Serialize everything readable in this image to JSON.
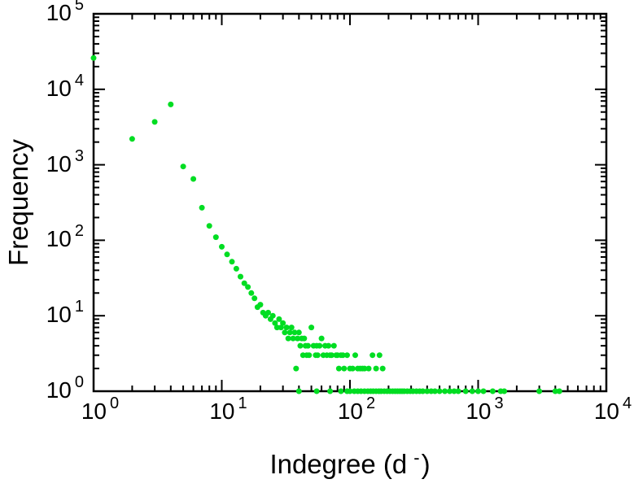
{
  "chart_data": {
    "type": "scatter",
    "title": "",
    "xlabel_prefix": "Indegree (d",
    "xlabel_sup": "-",
    "xlabel_suffix": ")",
    "ylabel": "Frequency",
    "x_scale": "log",
    "y_scale": "log",
    "xlim": [
      1,
      10000
    ],
    "ylim": [
      1,
      100000
    ],
    "tick_mantissa": "10",
    "x_tick_exponents": [
      0,
      1,
      2,
      3,
      4
    ],
    "y_tick_exponents": [
      0,
      1,
      2,
      3,
      4,
      5
    ],
    "grid": false,
    "legend": "none",
    "marker_color": "#00dd22",
    "axis_color": "#000000",
    "points": [
      [
        1,
        26000
      ],
      [
        2,
        2200
      ],
      [
        3,
        3700
      ],
      [
        4,
        6300
      ],
      [
        5,
        950
      ],
      [
        6,
        650
      ],
      [
        7,
        270
      ],
      [
        8,
        155
      ],
      [
        9,
        110
      ],
      [
        10,
        82
      ],
      [
        11,
        65
      ],
      [
        12,
        52
      ],
      [
        13,
        42
      ],
      [
        14,
        33
      ],
      [
        15,
        27
      ],
      [
        16,
        24
      ],
      [
        17,
        20
      ],
      [
        18,
        17
      ],
      [
        19,
        13
      ],
      [
        20,
        14
      ],
      [
        21,
        11
      ],
      [
        22,
        10
      ],
      [
        23,
        11
      ],
      [
        24,
        9
      ],
      [
        25,
        10
      ],
      [
        26,
        8
      ],
      [
        27,
        7
      ],
      [
        28,
        9
      ],
      [
        29,
        7
      ],
      [
        30,
        8
      ],
      [
        31,
        6
      ],
      [
        32,
        7
      ],
      [
        33,
        5
      ],
      [
        34,
        6
      ],
      [
        35,
        7
      ],
      [
        36,
        5
      ],
      [
        37,
        6
      ],
      [
        38,
        2
      ],
      [
        39,
        5
      ],
      [
        40,
        6
      ],
      [
        41,
        4
      ],
      [
        42,
        5
      ],
      [
        43,
        3
      ],
      [
        44,
        5
      ],
      [
        45,
        4
      ],
      [
        46,
        3
      ],
      [
        47,
        4
      ],
      [
        48,
        3
      ],
      [
        50,
        7
      ],
      [
        52,
        4
      ],
      [
        54,
        3
      ],
      [
        55,
        4
      ],
      [
        56,
        3
      ],
      [
        58,
        4
      ],
      [
        60,
        5
      ],
      [
        62,
        3
      ],
      [
        64,
        4
      ],
      [
        66,
        3
      ],
      [
        68,
        4
      ],
      [
        70,
        3
      ],
      [
        72,
        3
      ],
      [
        75,
        4
      ],
      [
        78,
        3
      ],
      [
        80,
        3
      ],
      [
        82,
        2
      ],
      [
        85,
        3
      ],
      [
        88,
        3
      ],
      [
        90,
        2
      ],
      [
        95,
        3
      ],
      [
        100,
        2
      ],
      [
        105,
        2
      ],
      [
        110,
        3
      ],
      [
        115,
        2
      ],
      [
        120,
        2
      ],
      [
        125,
        2
      ],
      [
        130,
        2
      ],
      [
        140,
        2
      ],
      [
        150,
        3
      ],
      [
        160,
        2
      ],
      [
        170,
        3
      ],
      [
        180,
        2
      ],
      [
        40,
        1
      ],
      [
        55,
        1
      ],
      [
        70,
        1
      ],
      [
        85,
        1
      ],
      [
        95,
        1
      ],
      [
        100,
        1
      ],
      [
        108,
        1
      ],
      [
        115,
        1
      ],
      [
        122,
        1
      ],
      [
        130,
        1
      ],
      [
        138,
        1
      ],
      [
        145,
        1
      ],
      [
        152,
        1
      ],
      [
        160,
        1
      ],
      [
        168,
        1
      ],
      [
        175,
        1
      ],
      [
        185,
        1
      ],
      [
        195,
        1
      ],
      [
        205,
        1
      ],
      [
        215,
        1
      ],
      [
        225,
        1
      ],
      [
        235,
        1
      ],
      [
        245,
        1
      ],
      [
        255,
        1
      ],
      [
        265,
        1
      ],
      [
        280,
        1
      ],
      [
        295,
        1
      ],
      [
        310,
        1
      ],
      [
        330,
        1
      ],
      [
        350,
        1
      ],
      [
        370,
        1
      ],
      [
        400,
        1
      ],
      [
        430,
        1
      ],
      [
        460,
        1
      ],
      [
        500,
        1
      ],
      [
        550,
        1
      ],
      [
        600,
        1
      ],
      [
        650,
        1
      ],
      [
        700,
        1
      ],
      [
        800,
        1
      ],
      [
        900,
        1
      ],
      [
        1000,
        1
      ],
      [
        1100,
        1
      ],
      [
        1300,
        1
      ],
      [
        1500,
        1
      ],
      [
        1600,
        1
      ],
      [
        3000,
        1
      ],
      [
        4000,
        1
      ],
      [
        4300,
        1
      ]
    ]
  }
}
